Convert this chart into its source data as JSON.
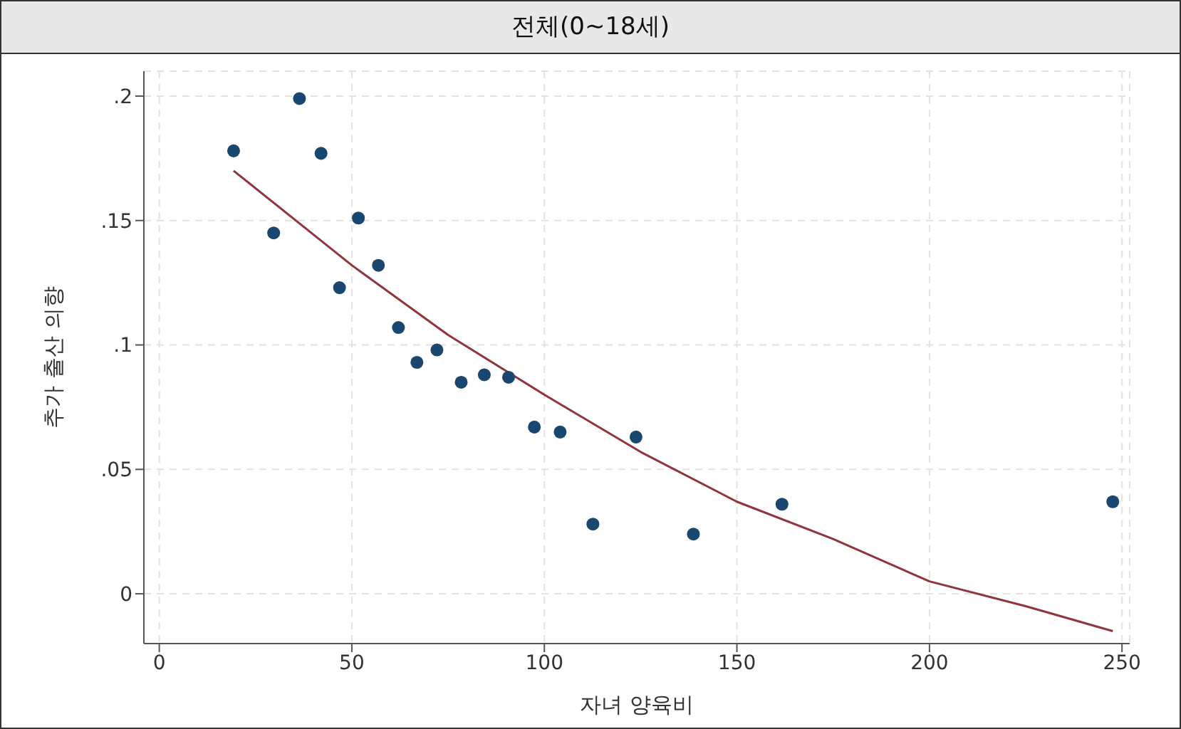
{
  "chart_data": {
    "type": "scatter",
    "title": "전체(0~18세)",
    "xlabel": "자녀 양육비",
    "ylabel": "추가 출산 의향",
    "xlim": [
      -4,
      252
    ],
    "xticks": [
      0,
      50,
      100,
      150,
      200,
      250
    ],
    "ylim": [
      -0.02,
      0.21
    ],
    "yticks": [
      0,
      {
        "value": 0.05,
        "label": ".05"
      },
      {
        "value": 0.1,
        "label": ".1"
      },
      {
        "value": 0.15,
        "label": ".15"
      },
      {
        "value": 0.2,
        "label": ".2"
      }
    ],
    "grid": true,
    "series": [
      {
        "marker": "circle",
        "color": "#1a476f",
        "x": [
          19.3,
          29.7,
          36.4,
          42.0,
          46.8,
          51.7,
          56.9,
          62.1,
          66.9,
          72.1,
          78.4,
          84.4,
          90.7,
          97.4,
          104.1,
          112.6,
          123.8,
          138.7,
          161.7,
          247.6
        ],
        "values": [
          0.178,
          0.145,
          0.199,
          0.177,
          0.123,
          0.151,
          0.132,
          0.107,
          0.093,
          0.098,
          0.085,
          0.088,
          0.087,
          0.067,
          0.065,
          0.028,
          0.063,
          0.024,
          0.036,
          0.037
        ]
      },
      {
        "type": "line",
        "marker": "none",
        "line_style": "solid",
        "color": "#90353b",
        "x": [
          19.3,
          50,
          75,
          100,
          125,
          150,
          175,
          200,
          225,
          247.6
        ],
        "values": [
          0.17,
          0.132,
          0.104,
          0.08,
          0.057,
          0.037,
          0.022,
          0.005,
          -0.005,
          -0.015
        ]
      }
    ]
  }
}
